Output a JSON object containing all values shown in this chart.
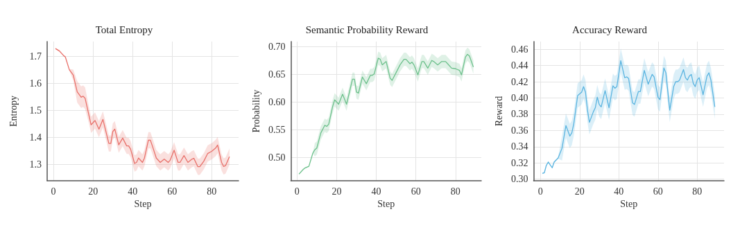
{
  "chart_data": [
    {
      "type": "line",
      "title": "Total Entropy",
      "xlabel": "Step",
      "ylabel": "Entropy",
      "xlim": [
        -3.2,
        93.6
      ],
      "ylim": [
        1.24,
        1.755
      ],
      "xticks": [
        0,
        20,
        40,
        60,
        80
      ],
      "yticks": [
        1.3,
        1.4,
        1.5,
        1.6,
        1.7
      ],
      "grid": true,
      "marker": "none",
      "line_style": "solid",
      "series": [
        {
          "color": "#e8706a",
          "x": [
            1,
            3,
            5,
            6,
            8,
            10,
            12,
            14,
            15,
            16,
            18,
            19,
            21,
            23,
            25,
            28,
            29,
            30,
            31,
            33,
            35,
            37,
            38,
            39,
            41,
            42,
            43,
            45,
            46,
            48,
            49,
            50,
            52,
            54,
            56,
            58,
            59,
            61,
            63,
            64,
            66,
            68,
            70,
            71,
            73,
            74,
            76,
            78,
            80,
            82,
            83,
            85,
            86,
            87,
            89
          ],
          "values": [
            1.729,
            1.72,
            1.704,
            1.698,
            1.651,
            1.631,
            1.569,
            1.549,
            1.553,
            1.545,
            1.48,
            1.447,
            1.463,
            1.431,
            1.467,
            1.378,
            1.378,
            1.422,
            1.431,
            1.373,
            1.398,
            1.369,
            1.369,
            1.357,
            1.304,
            1.308,
            1.324,
            1.308,
            1.324,
            1.39,
            1.39,
            1.369,
            1.324,
            1.308,
            1.32,
            1.308,
            1.316,
            1.353,
            1.308,
            1.308,
            1.333,
            1.308,
            1.32,
            1.323,
            1.292,
            1.292,
            1.312,
            1.341,
            1.349,
            1.361,
            1.372,
            1.308,
            1.293,
            1.296,
            1.329
          ],
          "lower": [
            1.726,
            1.717,
            1.701,
            1.695,
            1.648,
            1.611,
            1.529,
            1.509,
            1.513,
            1.505,
            1.45,
            1.417,
            1.433,
            1.401,
            1.437,
            1.348,
            1.348,
            1.392,
            1.401,
            1.343,
            1.368,
            1.339,
            1.339,
            1.327,
            1.274,
            1.278,
            1.294,
            1.278,
            1.294,
            1.36,
            1.36,
            1.339,
            1.294,
            1.278,
            1.29,
            1.278,
            1.286,
            1.323,
            1.278,
            1.278,
            1.303,
            1.278,
            1.29,
            1.293,
            1.262,
            1.262,
            1.282,
            1.311,
            1.319,
            1.331,
            1.342,
            1.278,
            1.263,
            1.266,
            1.299
          ],
          "upper": [
            1.732,
            1.723,
            1.707,
            1.701,
            1.654,
            1.651,
            1.609,
            1.589,
            1.593,
            1.585,
            1.51,
            1.477,
            1.493,
            1.461,
            1.497,
            1.408,
            1.408,
            1.452,
            1.461,
            1.403,
            1.428,
            1.399,
            1.399,
            1.387,
            1.334,
            1.338,
            1.354,
            1.338,
            1.354,
            1.42,
            1.42,
            1.399,
            1.354,
            1.338,
            1.35,
            1.338,
            1.346,
            1.383,
            1.338,
            1.338,
            1.363,
            1.338,
            1.35,
            1.353,
            1.322,
            1.322,
            1.342,
            1.371,
            1.379,
            1.391,
            1.402,
            1.338,
            1.323,
            1.326,
            1.359
          ]
        }
      ]
    },
    {
      "type": "line",
      "title": "Semantic Probability Reward",
      "xlabel": "Step",
      "ylabel": "Probability",
      "xlim": [
        -3.1,
        93
      ],
      "ylim": [
        0.458,
        0.709
      ],
      "xticks": [
        0,
        20,
        40,
        60,
        80
      ],
      "yticks": [
        {
          "value": 0.5,
          "label": "0.50"
        },
        0.55,
        {
          "value": 0.6,
          "label": "0.60"
        },
        0.65,
        {
          "value": 0.7,
          "label": "0.70"
        }
      ],
      "grid": true,
      "marker": "none",
      "line_style": "solid",
      "series": [
        {
          "color": "#6cc08b",
          "x": [
            1,
            3,
            4,
            6,
            8,
            9,
            10,
            12,
            14,
            15,
            16,
            18,
            19,
            21,
            23,
            25,
            28,
            29,
            30,
            31,
            33,
            35,
            37,
            38,
            39,
            41,
            42,
            43,
            45,
            47,
            48,
            50,
            52,
            54,
            55,
            57,
            58,
            59,
            61,
            63,
            64,
            66,
            68,
            69,
            71,
            73,
            75,
            76,
            78,
            80,
            82,
            83,
            85,
            86,
            87,
            89
          ],
          "values": [
            0.47,
            0.478,
            0.481,
            0.484,
            0.508,
            0.514,
            0.517,
            0.544,
            0.558,
            0.556,
            0.56,
            0.592,
            0.604,
            0.596,
            0.614,
            0.596,
            0.641,
            0.641,
            0.618,
            0.616,
            0.645,
            0.633,
            0.648,
            0.648,
            0.651,
            0.679,
            0.677,
            0.667,
            0.673,
            0.643,
            0.639,
            0.653,
            0.667,
            0.677,
            0.677,
            0.669,
            0.672,
            0.667,
            0.649,
            0.673,
            0.673,
            0.661,
            0.675,
            0.673,
            0.667,
            0.673,
            0.673,
            0.669,
            0.661,
            0.66,
            0.657,
            0.649,
            0.681,
            0.686,
            0.683,
            0.663
          ],
          "lower": [
            0.469,
            0.477,
            0.48,
            0.483,
            0.507,
            0.502,
            0.505,
            0.532,
            0.546,
            0.544,
            0.548,
            0.58,
            0.592,
            0.584,
            0.602,
            0.584,
            0.629,
            0.629,
            0.606,
            0.604,
            0.633,
            0.621,
            0.636,
            0.636,
            0.639,
            0.667,
            0.665,
            0.655,
            0.661,
            0.631,
            0.627,
            0.641,
            0.655,
            0.665,
            0.665,
            0.657,
            0.66,
            0.655,
            0.637,
            0.661,
            0.661,
            0.649,
            0.663,
            0.661,
            0.655,
            0.661,
            0.661,
            0.657,
            0.649,
            0.648,
            0.645,
            0.637,
            0.669,
            0.674,
            0.671,
            0.651
          ],
          "upper": [
            0.471,
            0.479,
            0.482,
            0.485,
            0.509,
            0.526,
            0.529,
            0.556,
            0.57,
            0.568,
            0.572,
            0.604,
            0.616,
            0.608,
            0.626,
            0.608,
            0.653,
            0.653,
            0.63,
            0.628,
            0.657,
            0.645,
            0.66,
            0.66,
            0.663,
            0.691,
            0.689,
            0.679,
            0.685,
            0.655,
            0.651,
            0.665,
            0.679,
            0.689,
            0.689,
            0.681,
            0.684,
            0.679,
            0.661,
            0.685,
            0.685,
            0.673,
            0.687,
            0.685,
            0.679,
            0.685,
            0.685,
            0.681,
            0.673,
            0.672,
            0.669,
            0.661,
            0.693,
            0.698,
            0.695,
            0.675
          ]
        }
      ]
    },
    {
      "type": "line",
      "title": "Accuracy Reward",
      "xlabel": "Step",
      "ylabel": "Reward",
      "xlim": [
        -3.5,
        93.7
      ],
      "ylim": [
        0.298,
        0.4695
      ],
      "xticks": [
        0,
        20,
        40,
        60,
        80
      ],
      "yticks": [
        {
          "value": 0.3,
          "label": "0.30"
        },
        0.32,
        0.34,
        0.36,
        0.38,
        {
          "value": 0.4,
          "label": "0.40"
        },
        0.42,
        0.44,
        0.46
      ],
      "grid": true,
      "marker": "none",
      "line_style": "solid",
      "series": [
        {
          "color": "#5ab4e0",
          "x": [
            1,
            2,
            3,
            4,
            6,
            7,
            9,
            11,
            13,
            15,
            16,
            17,
            19,
            20,
            21,
            22,
            23,
            24,
            25,
            27,
            28,
            29,
            30,
            31,
            33,
            35,
            37,
            38,
            39,
            41,
            43,
            44,
            45,
            47,
            48,
            50,
            51,
            53,
            55,
            57,
            58,
            60,
            61,
            63,
            64,
            66,
            68,
            69,
            70,
            71,
            73,
            74,
            75,
            76,
            77,
            78,
            79,
            80,
            81,
            83,
            85,
            86,
            87,
            89
          ],
          "values": [
            0.307,
            0.308,
            0.317,
            0.321,
            0.314,
            0.321,
            0.326,
            0.338,
            0.366,
            0.353,
            0.357,
            0.368,
            0.403,
            0.405,
            0.407,
            0.414,
            0.407,
            0.385,
            0.37,
            0.383,
            0.388,
            0.401,
            0.392,
            0.389,
            0.409,
            0.388,
            0.415,
            0.412,
            0.414,
            0.446,
            0.425,
            0.426,
            0.424,
            0.394,
            0.392,
            0.408,
            0.408,
            0.434,
            0.417,
            0.429,
            0.426,
            0.401,
            0.398,
            0.437,
            0.431,
            0.385,
            0.414,
            0.42,
            0.42,
            0.422,
            0.435,
            0.425,
            0.422,
            0.427,
            0.429,
            0.418,
            0.414,
            0.422,
            0.425,
            0.404,
            0.427,
            0.431,
            0.422,
            0.389
          ],
          "lower": [
            0.306,
            0.307,
            0.316,
            0.32,
            0.313,
            0.32,
            0.325,
            0.323,
            0.351,
            0.338,
            0.342,
            0.353,
            0.388,
            0.39,
            0.392,
            0.399,
            0.392,
            0.37,
            0.355,
            0.368,
            0.373,
            0.386,
            0.377,
            0.374,
            0.394,
            0.373,
            0.4,
            0.397,
            0.399,
            0.431,
            0.41,
            0.411,
            0.409,
            0.379,
            0.377,
            0.393,
            0.393,
            0.419,
            0.402,
            0.414,
            0.411,
            0.386,
            0.383,
            0.422,
            0.416,
            0.37,
            0.399,
            0.405,
            0.405,
            0.407,
            0.42,
            0.41,
            0.407,
            0.412,
            0.414,
            0.403,
            0.399,
            0.407,
            0.41,
            0.389,
            0.412,
            0.416,
            0.407,
            0.374
          ],
          "upper": [
            0.308,
            0.309,
            0.318,
            0.322,
            0.315,
            0.322,
            0.327,
            0.353,
            0.381,
            0.368,
            0.372,
            0.383,
            0.418,
            0.42,
            0.422,
            0.429,
            0.422,
            0.4,
            0.385,
            0.398,
            0.403,
            0.416,
            0.407,
            0.404,
            0.424,
            0.403,
            0.43,
            0.427,
            0.429,
            0.461,
            0.44,
            0.441,
            0.439,
            0.409,
            0.407,
            0.423,
            0.423,
            0.449,
            0.432,
            0.444,
            0.441,
            0.416,
            0.413,
            0.452,
            0.446,
            0.4,
            0.429,
            0.435,
            0.435,
            0.437,
            0.45,
            0.44,
            0.437,
            0.442,
            0.444,
            0.433,
            0.429,
            0.437,
            0.44,
            0.419,
            0.442,
            0.446,
            0.437,
            0.404
          ]
        }
      ]
    }
  ]
}
